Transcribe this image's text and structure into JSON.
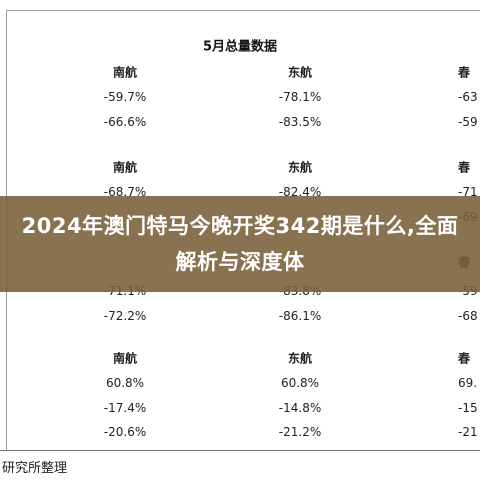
{
  "title": "5月总量数据",
  "sections": [
    {
      "header": [
        "南航",
        "东航",
        "春"
      ],
      "rows": [
        [
          "-59.7%",
          "-78.1%",
          "-63"
        ],
        [
          "-66.6%",
          "-83.5%",
          "-59"
        ]
      ]
    },
    {
      "header": [
        "南航",
        "东航",
        "春"
      ],
      "rows": [
        [
          "-68.7%",
          "-82.4%",
          "-71"
        ],
        [
          "",
          "",
          "-69"
        ]
      ]
    },
    {
      "header": [
        "",
        "",
        "春"
      ],
      "rows": [
        [
          "-71.1%",
          "-83.8%",
          "-59"
        ],
        [
          "-72.2%",
          "-86.1%",
          "-68"
        ]
      ]
    },
    {
      "header": [
        "南航",
        "东航",
        "春"
      ],
      "rows": [
        [
          "60.8%",
          "60.8%",
          "69."
        ],
        [
          "-17.4%",
          "-14.8%",
          "-15"
        ],
        [
          "-20.6%",
          "-21.2%",
          "-21"
        ]
      ]
    }
  ],
  "banner": "2024年澳门特马今晚开奖342期是什么,全面解析与深度体",
  "source": "研究所整理"
}
